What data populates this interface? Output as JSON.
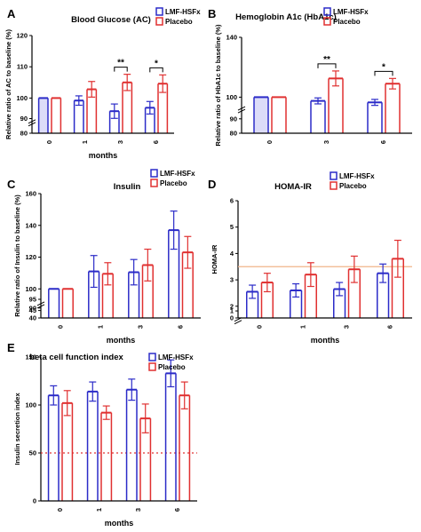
{
  "chart_data": [
    {
      "id": "A",
      "panel_label": "A",
      "type": "bar",
      "title": "Blood Glucose (AC)",
      "ylabel": "Relative ratio of AC to baseline (%)",
      "xlabel": "months",
      "categories": [
        "0",
        "1",
        "3",
        "6"
      ],
      "ylim": [
        80,
        120
      ],
      "axis_break": true,
      "yticks": [
        80,
        90,
        100,
        110,
        120
      ],
      "ytick_labels": [
        "80",
        "90",
        "100",
        "110",
        "120"
      ],
      "series": [
        {
          "name": "LMF-HSFx",
          "color": "#2b2bc8",
          "values": [
            100,
            99.2,
            95.8,
            96.9
          ],
          "errors": [
            0,
            1.5,
            2.3,
            2.0
          ]
        },
        {
          "name": "Placebo",
          "color": "#e03030",
          "values": [
            100,
            102.8,
            105.0,
            104.6
          ],
          "errors": [
            0,
            2.5,
            2.6,
            2.8
          ]
        }
      ],
      "significance": [
        {
          "category": "3",
          "label": "**"
        },
        {
          "category": "6",
          "label": "*"
        }
      ],
      "legend_position": "top-right"
    },
    {
      "id": "B",
      "panel_label": "B",
      "type": "bar",
      "title": "Hemoglobin A1c (HbA1c)",
      "ylabel": "Relative ratio of HbA1c to baseline (%)",
      "xlabel": "",
      "categories": [
        "0",
        "3",
        "6"
      ],
      "ylim": [
        80,
        140
      ],
      "axis_break": true,
      "yticks": [
        80,
        90,
        100,
        140
      ],
      "ytick_labels": [
        "80",
        "90",
        "100",
        "140"
      ],
      "series": [
        {
          "name": "LMF-HSFx",
          "color": "#2b2bc8",
          "values": [
            100,
            97.5,
            96.5
          ],
          "errors": [
            0,
            2.0,
            2.0
          ]
        },
        {
          "name": "Placebo",
          "color": "#e03030",
          "values": [
            100,
            112.5,
            109.0
          ],
          "errors": [
            0,
            5.0,
            3.5
          ]
        }
      ],
      "significance": [
        {
          "category": "3",
          "label": "**"
        },
        {
          "category": "6",
          "label": "*"
        }
      ],
      "legend_position": "top-right"
    },
    {
      "id": "C",
      "panel_label": "C",
      "type": "bar",
      "title": "Insulin",
      "ylabel": "Relative ratio of Insulin to baseline (%)",
      "xlabel": "months",
      "categories": [
        "0",
        "1",
        "3",
        "6"
      ],
      "ylim": [
        40,
        160
      ],
      "axis_break": true,
      "yticks": [
        40,
        45,
        90,
        95,
        100,
        120,
        140,
        160
      ],
      "ytick_labels": [
        "40",
        "45",
        "90",
        "95",
        "100",
        "120",
        "140",
        "160"
      ],
      "series": [
        {
          "name": "LMF-HSFx",
          "color": "#2b2bc8",
          "values": [
            100,
            111,
            110.5,
            137
          ],
          "errors": [
            0,
            10,
            8,
            12
          ]
        },
        {
          "name": "Placebo",
          "color": "#e03030",
          "values": [
            100,
            109.5,
            115,
            123
          ],
          "errors": [
            0,
            7,
            10,
            10
          ]
        }
      ],
      "legend_position": "top-right"
    },
    {
      "id": "D",
      "panel_label": "D",
      "type": "bar",
      "title": "HOMA-IR",
      "ylabel": "HOMA-IR",
      "xlabel": "months",
      "categories": [
        "0",
        "1",
        "3",
        "6"
      ],
      "ylim": [
        0,
        6
      ],
      "axis_break": true,
      "yticks": [
        0,
        1,
        2,
        3,
        4,
        5,
        6
      ],
      "ytick_labels": [
        "0",
        "1",
        "2",
        "3",
        "4",
        "5",
        "6"
      ],
      "reference_line": 3.5,
      "series": [
        {
          "name": "LMF-HSFx",
          "color": "#2b2bc8",
          "values": [
            2.55,
            2.6,
            2.65,
            3.25
          ],
          "errors": [
            0.25,
            0.25,
            0.25,
            0.35
          ]
        },
        {
          "name": "Placebo",
          "color": "#e03030",
          "values": [
            2.9,
            3.2,
            3.4,
            3.8
          ],
          "errors": [
            0.35,
            0.45,
            0.5,
            0.7
          ]
        }
      ],
      "legend_position": "top-right"
    },
    {
      "id": "E",
      "panel_label": "E",
      "type": "bar",
      "title": "beta cell function index",
      "ylabel": "Insulin secretion index",
      "xlabel": "months",
      "categories": [
        "0",
        "1",
        "3",
        "6"
      ],
      "ylim": [
        0,
        150
      ],
      "yticks": [
        0,
        50,
        100,
        150
      ],
      "ytick_labels": [
        "0",
        "50",
        "100",
        "150"
      ],
      "reference_line": 50,
      "series": [
        {
          "name": "LMF-HSFx",
          "color": "#2b2bc8",
          "values": [
            110,
            114,
            116,
            133
          ],
          "errors": [
            10,
            10,
            11,
            14
          ]
        },
        {
          "name": "Placebo",
          "color": "#e03030",
          "values": [
            102,
            92,
            86,
            110
          ],
          "errors": [
            13,
            7,
            15,
            14
          ]
        }
      ],
      "legend_position": "top-right"
    }
  ]
}
